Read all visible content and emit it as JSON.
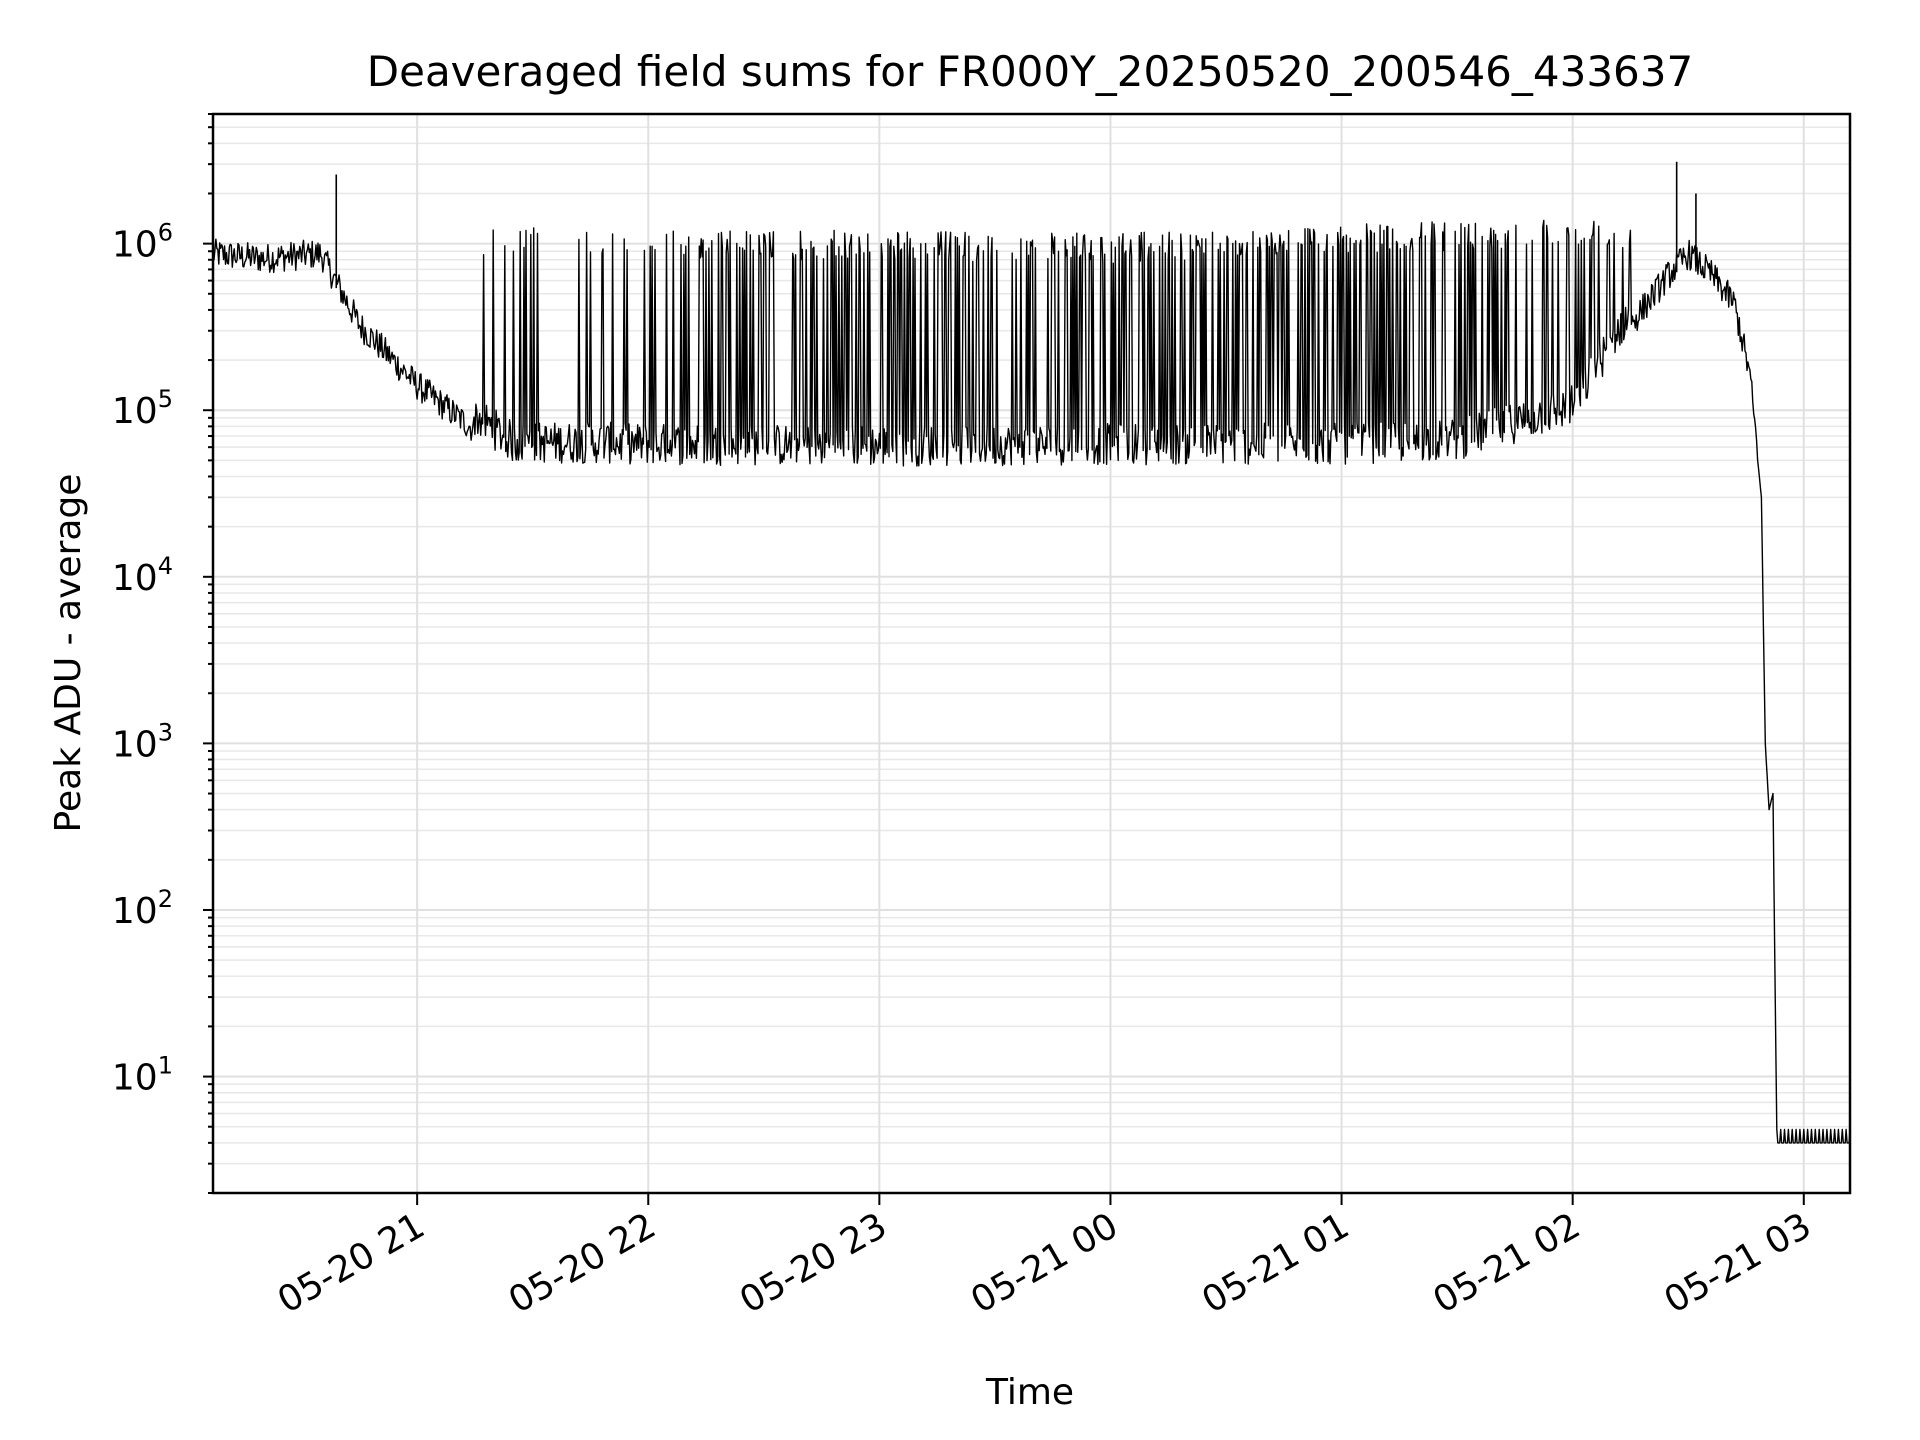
{
  "chart_data": {
    "type": "line",
    "title": "Deaveraged field sums for FR000Y_20250520_200546_433637",
    "xlabel": "Time",
    "ylabel": "Peak ADU - average",
    "yscale": "log",
    "ylim": [
      2,
      6000000
    ],
    "xlim": [
      "05-20 20:07",
      "05-21 03:12"
    ],
    "grid": true,
    "legend": "none",
    "line_color": "#000000",
    "x_ticks": [
      "05-20 21",
      "05-20 22",
      "05-20 23",
      "05-21 00",
      "05-21 01",
      "05-21 02",
      "05-21 03"
    ],
    "y_ticks": [
      {
        "base": "10",
        "exp": "1",
        "value": 10
      },
      {
        "base": "10",
        "exp": "2",
        "value": 100
      },
      {
        "base": "10",
        "exp": "3",
        "value": 1000
      },
      {
        "base": "10",
        "exp": "4",
        "value": 10000
      },
      {
        "base": "10",
        "exp": "5",
        "value": 100000
      },
      {
        "base": "10",
        "exp": "6",
        "value": 1000000
      }
    ],
    "series": [
      {
        "envelope_low": {
          "x": [
            "05-20 20:07",
            "05-20 20:20",
            "05-20 20:35",
            "05-20 20:45",
            "05-20 21:00",
            "05-20 21:15",
            "05-20 21:25",
            "05-20 21:45",
            "05-20 22:00",
            "05-20 23:00",
            "05-21 00:00",
            "05-21 01:00",
            "05-21 01:30",
            "05-21 02:00",
            "05-21 02:15",
            "05-21 02:25",
            "05-21 02:30",
            "05-21 02:36",
            "05-21 02:42",
            "05-21 02:46",
            "05-21 02:49",
            "05-21 02:50",
            "05-21 02:51",
            "05-21 02:52",
            "05-21 02:53",
            "05-21 03:12"
          ],
          "y": [
            800000,
            750000,
            800000,
            300000,
            130000,
            70000,
            48000,
            48000,
            47000,
            46000,
            47000,
            47000,
            50000,
            80000,
            300000,
            600000,
            800000,
            600000,
            400000,
            150000,
            30000,
            1000,
            400,
            500,
            4,
            4
          ]
        },
        "burst_peaks": {
          "x": [
            "05-20 21:15",
            "05-20 22:00",
            "05-20 23:00",
            "05-21 00:00",
            "05-21 01:00",
            "05-21 02:00",
            "05-21 02:15"
          ],
          "y": [
            1300000,
            1200000,
            1200000,
            1150000,
            1300000,
            1450000,
            1400000
          ]
        },
        "spikes": [
          {
            "x": "05-20 20:39",
            "y": 2600000
          },
          {
            "x": "05-21 02:27",
            "y": 3100000
          },
          {
            "x": "05-21 02:32",
            "y": 2000000
          }
        ]
      }
    ]
  }
}
